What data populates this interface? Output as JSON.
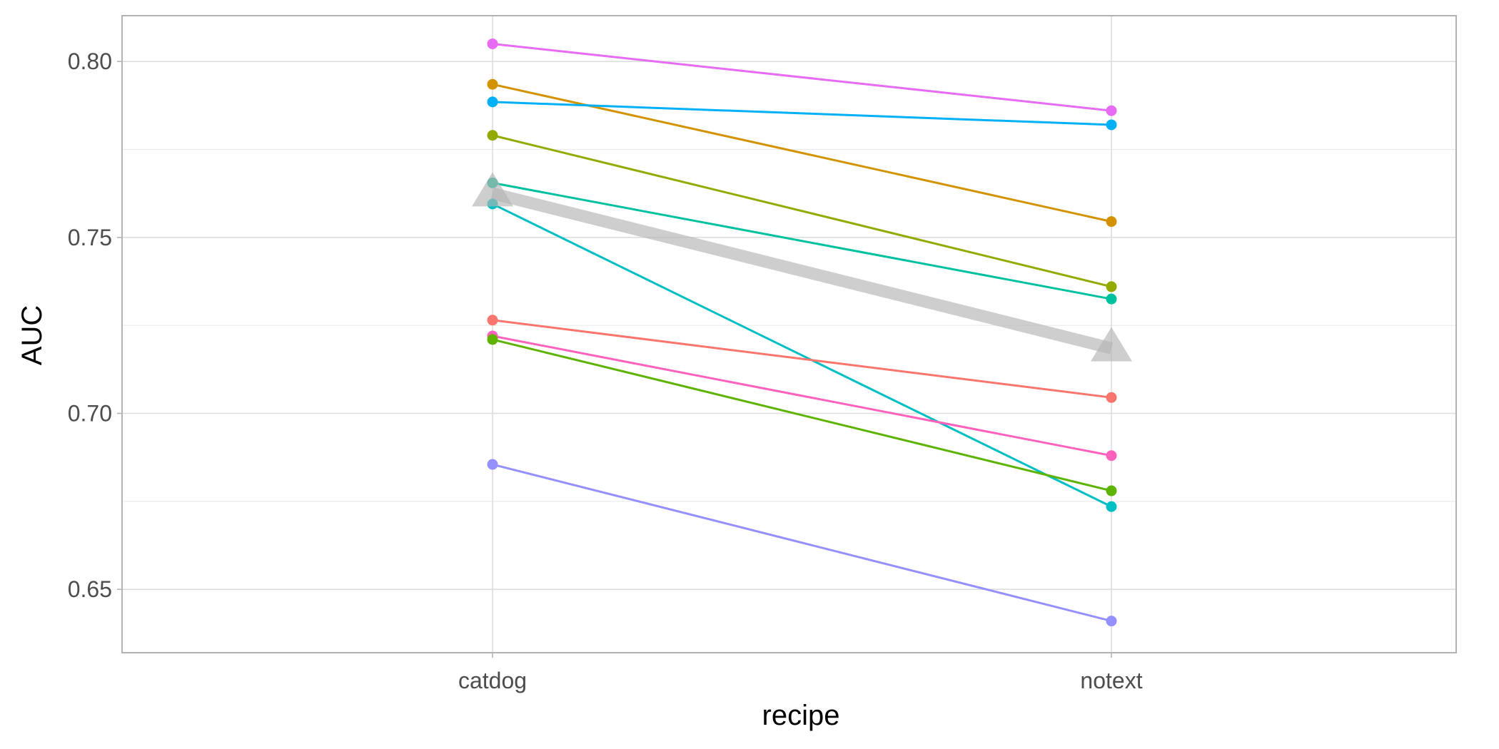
{
  "chart_data": {
    "type": "line",
    "xlabel": "recipe",
    "ylabel": "AUC",
    "categories": [
      "catdog",
      "notext"
    ],
    "ylim": [
      0.632,
      0.813
    ],
    "yticks": [
      0.65,
      0.7,
      0.75,
      0.8
    ],
    "ytick_labels": [
      "0.65",
      "0.70",
      "0.75",
      "0.80"
    ],
    "grid": true,
    "legend": "none",
    "series": [
      {
        "color": "#E76BF3",
        "values": [
          0.805,
          0.786
        ]
      },
      {
        "color": "#D39200",
        "values": [
          0.7935,
          0.7545
        ]
      },
      {
        "color": "#00B0F6",
        "values": [
          0.7885,
          0.782
        ]
      },
      {
        "color": "#93AA00",
        "values": [
          0.779,
          0.736
        ]
      },
      {
        "color": "#00C19F",
        "values": [
          0.7655,
          0.7325
        ]
      },
      {
        "color": "#00BFC4",
        "values": [
          0.7595,
          0.6735
        ]
      },
      {
        "color": "#F8766D",
        "values": [
          0.7265,
          0.7045
        ]
      },
      {
        "color": "#FF62BC",
        "values": [
          0.722,
          0.688
        ]
      },
      {
        "color": "#5EB300",
        "values": [
          0.721,
          0.678
        ]
      },
      {
        "color": "#9590FF",
        "values": [
          0.6855,
          0.641
        ]
      }
    ],
    "mean_line": {
      "color": "#b3b3b3",
      "values": [
        0.7625,
        0.7185
      ]
    }
  }
}
